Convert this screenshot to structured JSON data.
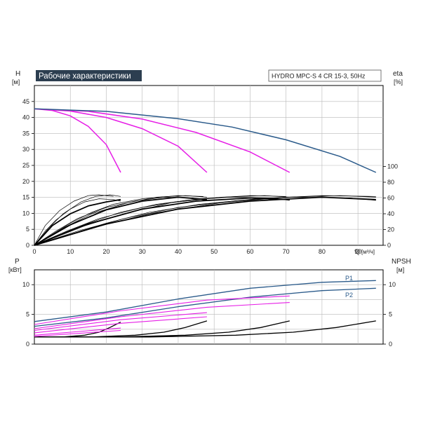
{
  "chart_data": [
    {
      "type": "line",
      "panel": "head-efficiency",
      "title": "Рабочие характеристики",
      "subtitle": "HYDRO MPC-S 4 CR 15-3, 50Hz",
      "left_axis": {
        "label": "H",
        "unit": "[м]",
        "ylim": [
          0,
          45
        ],
        "ticks": [
          0,
          5,
          10,
          15,
          20,
          25,
          30,
          35,
          40,
          45
        ]
      },
      "right_axis": {
        "label": "eta",
        "unit": "[%]",
        "ylim": [
          0,
          100
        ],
        "ticks": [
          0,
          20,
          40,
          60,
          80,
          100
        ]
      },
      "x_axis": {
        "label": "Q",
        "unit": "[м³/ч]",
        "xlim": [
          0,
          97
        ],
        "ticks": [
          0,
          10,
          20,
          30,
          40,
          50,
          60,
          70,
          80,
          90
        ]
      },
      "grid": true,
      "head_series": [
        {
          "color": "#e61ee6",
          "points": [
            [
              0,
              42.7
            ],
            [
              5,
              42.2
            ],
            [
              10,
              40.5
            ],
            [
              15,
              37.2
            ],
            [
              20,
              31.5
            ],
            [
              24,
              22.8
            ]
          ]
        },
        {
          "color": "#e61ee6",
          "points": [
            [
              0,
              42.7
            ],
            [
              10,
              42.0
            ],
            [
              20,
              40.0
            ],
            [
              30,
              36.5
            ],
            [
              40,
              31.0
            ],
            [
              48,
              22.8
            ]
          ]
        },
        {
          "color": "#e61ee6",
          "points": [
            [
              0,
              42.7
            ],
            [
              15,
              41.9
            ],
            [
              30,
              39.5
            ],
            [
              45,
              35.3
            ],
            [
              60,
              29.2
            ],
            [
              71,
              22.8
            ]
          ]
        },
        {
          "color": "#2a5a8a",
          "points": [
            [
              0,
              42.7
            ],
            [
              20,
              41.9
            ],
            [
              40,
              39.6
            ],
            [
              55,
              37.0
            ],
            [
              70,
              33.0
            ],
            [
              85,
              27.8
            ],
            [
              95,
              22.8
            ]
          ]
        }
      ],
      "efficiency_series": [
        {
          "color": "#000000",
          "width": 1.8,
          "points": [
            [
              0,
              0
            ],
            [
              5,
              25
            ],
            [
              10,
              40
            ],
            [
              15,
              50
            ],
            [
              20,
              55
            ],
            [
              24,
              58
            ]
          ]
        },
        {
          "color": "#000000",
          "width": 1.8,
          "points": [
            [
              0,
              0
            ],
            [
              10,
              26
            ],
            [
              20,
              45
            ],
            [
              30,
              56
            ],
            [
              40,
              61
            ],
            [
              48,
              58
            ]
          ]
        },
        {
          "color": "#000000",
          "width": 1.8,
          "points": [
            [
              0,
              0
            ],
            [
              15,
              27
            ],
            [
              30,
              46
            ],
            [
              45,
              56
            ],
            [
              60,
              60
            ],
            [
              71,
              58
            ]
          ]
        },
        {
          "color": "#000000",
          "width": 1.8,
          "points": [
            [
              0,
              0
            ],
            [
              20,
              27
            ],
            [
              40,
              46
            ],
            [
              60,
              56
            ],
            [
              80,
              61
            ],
            [
              95,
              58
            ]
          ]
        },
        {
          "color": "#000000",
          "width": 0.7,
          "points": [
            [
              0,
              0
            ],
            [
              3,
              18
            ],
            [
              6,
              32
            ],
            [
              10,
              46
            ],
            [
              14,
              55
            ],
            [
              18,
              59
            ],
            [
              22,
              58
            ],
            [
              24,
              56
            ]
          ]
        },
        {
          "color": "#000000",
          "width": 0.7,
          "points": [
            [
              0,
              0
            ],
            [
              6,
              18
            ],
            [
              12,
              34
            ],
            [
              20,
              48
            ],
            [
              28,
              56
            ],
            [
              36,
              61
            ],
            [
              44,
              60
            ],
            [
              48,
              57
            ]
          ]
        },
        {
          "color": "#000000",
          "width": 0.7,
          "points": [
            [
              0,
              0
            ],
            [
              9,
              18
            ],
            [
              18,
              34
            ],
            [
              30,
              48
            ],
            [
              42,
              57
            ],
            [
              54,
              61
            ],
            [
              66,
              60
            ],
            [
              71,
              57
            ]
          ]
        },
        {
          "color": "#000000",
          "width": 0.7,
          "points": [
            [
              0,
              0
            ],
            [
              12,
              18
            ],
            [
              25,
              34
            ],
            [
              40,
              48
            ],
            [
              57,
              57
            ],
            [
              72,
              61
            ],
            [
              88,
              60
            ],
            [
              95,
              57
            ]
          ]
        },
        {
          "color": "#000000",
          "width": 0.7,
          "points": [
            [
              0,
              0
            ],
            [
              4,
              22
            ],
            [
              8,
              40
            ],
            [
              13,
              55
            ],
            [
              17,
              62
            ],
            [
              21,
              64
            ],
            [
              24,
              62
            ]
          ]
        },
        {
          "color": "#000000",
          "width": 0.7,
          "points": [
            [
              0,
              0
            ],
            [
              8,
              22
            ],
            [
              16,
              40
            ],
            [
              26,
              54
            ],
            [
              34,
              61
            ],
            [
              42,
              63
            ],
            [
              48,
              61
            ]
          ]
        },
        {
          "color": "#000000",
          "width": 0.7,
          "points": [
            [
              0,
              0
            ],
            [
              12,
              22
            ],
            [
              25,
              40
            ],
            [
              38,
              54
            ],
            [
              52,
              61
            ],
            [
              64,
              63
            ],
            [
              71,
              61
            ]
          ]
        },
        {
          "color": "#000000",
          "width": 0.7,
          "points": [
            [
              0,
              0
            ],
            [
              16,
              22
            ],
            [
              32,
              40
            ],
            [
              52,
              54
            ],
            [
              70,
              61
            ],
            [
              85,
              63
            ],
            [
              95,
              61
            ]
          ]
        },
        {
          "color": "#000000",
          "width": 0.7,
          "points": [
            [
              0,
              0
            ],
            [
              3,
              25
            ],
            [
              7,
              44
            ],
            [
              11,
              56
            ],
            [
              15,
              63
            ],
            [
              18,
              64
            ],
            [
              22,
              62
            ]
          ]
        },
        {
          "color": "#000000",
          "width": 0.7,
          "points": [
            [
              0,
              0
            ],
            [
              5,
              14
            ],
            [
              10,
              28
            ],
            [
              16,
              42
            ],
            [
              22,
              52
            ],
            [
              30,
              59
            ],
            [
              40,
              63
            ],
            [
              47,
              62
            ]
          ]
        },
        {
          "color": "#000000",
          "width": 0.7,
          "points": [
            [
              0,
              0
            ],
            [
              7,
              14
            ],
            [
              15,
              28
            ],
            [
              24,
              42
            ],
            [
              34,
              52
            ],
            [
              46,
              59
            ],
            [
              60,
              63
            ],
            [
              70,
              62
            ]
          ]
        },
        {
          "color": "#000000",
          "width": 0.7,
          "points": [
            [
              0,
              0
            ],
            [
              10,
              14
            ],
            [
              20,
              28
            ],
            [
              32,
              42
            ],
            [
              46,
              52
            ],
            [
              62,
              59
            ],
            [
              80,
              63
            ],
            [
              95,
              62
            ]
          ]
        }
      ]
    },
    {
      "type": "line",
      "panel": "power-npsh",
      "left_axis": {
        "label": "P",
        "unit": "[кВт]",
        "ylim": [
          0,
          12.5
        ],
        "ticks": [
          0,
          5,
          10
        ]
      },
      "right_axis": {
        "label": "NPSH",
        "unit": "[м]",
        "ylim": [
          0,
          12.5
        ],
        "ticks": [
          0,
          5,
          10
        ]
      },
      "x_axis": {
        "xlim": [
          0,
          97
        ],
        "ticks": [
          0,
          10,
          20,
          30,
          40,
          50,
          60,
          70,
          80,
          90
        ]
      },
      "grid": true,
      "power_series": [
        {
          "name": "P1",
          "color": "#2a5a8a",
          "points": [
            [
              0,
              3.8
            ],
            [
              20,
              5.4
            ],
            [
              40,
              7.6
            ],
            [
              60,
              9.4
            ],
            [
              80,
              10.4
            ],
            [
              95,
              10.7
            ]
          ]
        },
        {
          "name": "P2",
          "color": "#2a5a8a",
          "points": [
            [
              0,
              3.0
            ],
            [
              20,
              4.4
            ],
            [
              40,
              6.3
            ],
            [
              60,
              7.9
            ],
            [
              80,
              9.0
            ],
            [
              95,
              9.4
            ]
          ]
        },
        {
          "color": "#e61ee6",
          "points": [
            [
              0,
              3.3
            ],
            [
              24,
              5.6
            ],
            [
              48,
              7.4
            ],
            [
              71,
              8.1
            ]
          ]
        },
        {
          "color": "#e61ee6",
          "points": [
            [
              0,
              2.6
            ],
            [
              24,
              4.6
            ],
            [
              48,
              6.2
            ],
            [
              71,
              7.0
            ]
          ]
        },
        {
          "color": "#e61ee6",
          "points": [
            [
              0,
              2.3
            ],
            [
              24,
              4.1
            ],
            [
              48,
              5.3
            ]
          ]
        },
        {
          "color": "#e61ee6",
          "points": [
            [
              0,
              1.9
            ],
            [
              24,
              3.5
            ],
            [
              48,
              4.6
            ]
          ]
        },
        {
          "color": "#e61ee6",
          "points": [
            [
              0,
              1.5
            ],
            [
              24,
              2.7
            ]
          ]
        },
        {
          "color": "#e61ee6",
          "points": [
            [
              0,
              1.3
            ],
            [
              24,
              2.3
            ]
          ]
        }
      ],
      "npsh_series": [
        {
          "color": "#000000",
          "points": [
            [
              0,
              1.2
            ],
            [
              8,
              1.2
            ],
            [
              14,
              1.5
            ],
            [
              18,
              2.0
            ],
            [
              21,
              2.8
            ],
            [
              24,
              3.7
            ]
          ]
        },
        {
          "color": "#000000",
          "points": [
            [
              0,
              1.2
            ],
            [
              16,
              1.2
            ],
            [
              28,
              1.5
            ],
            [
              36,
              2.0
            ],
            [
              42,
              2.8
            ],
            [
              48,
              3.9
            ]
          ]
        },
        {
          "color": "#000000",
          "points": [
            [
              0,
              1.2
            ],
            [
              24,
              1.2
            ],
            [
              42,
              1.5
            ],
            [
              54,
              2.0
            ],
            [
              63,
              2.8
            ],
            [
              71,
              3.9
            ]
          ]
        },
        {
          "color": "#000000",
          "points": [
            [
              0,
              1.2
            ],
            [
              32,
              1.2
            ],
            [
              56,
              1.5
            ],
            [
              72,
              2.0
            ],
            [
              84,
              2.8
            ],
            [
              95,
              3.9
            ]
          ]
        }
      ]
    }
  ]
}
